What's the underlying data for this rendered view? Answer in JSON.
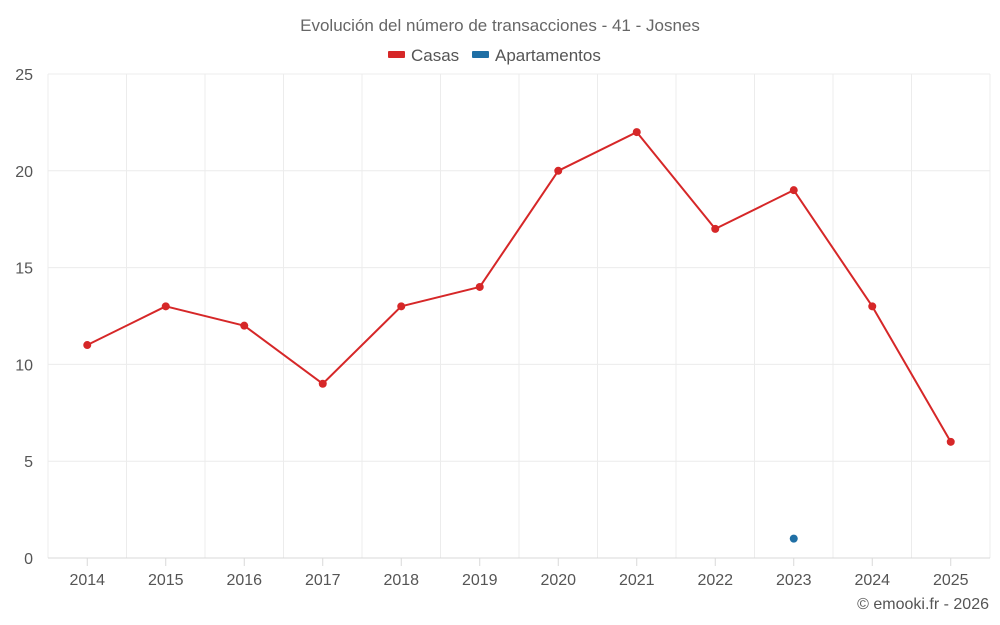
{
  "chart_data": {
    "type": "line",
    "title": "Evolución del número de transacciones - 41 - Josnes",
    "x": [
      "2014",
      "2015",
      "2016",
      "2017",
      "2018",
      "2019",
      "2020",
      "2021",
      "2022",
      "2023",
      "2024",
      "2025"
    ],
    "series": [
      {
        "name": "Casas",
        "color": "#d62728",
        "values": [
          11,
          13,
          12,
          9,
          13,
          14,
          20,
          22,
          17,
          19,
          13,
          6
        ]
      },
      {
        "name": "Apartamentos",
        "color": "#1f6fa5",
        "values": [
          null,
          null,
          null,
          null,
          null,
          null,
          null,
          null,
          null,
          1,
          null,
          null
        ]
      }
    ],
    "ylim": [
      0,
      25
    ],
    "yticks": [
      0,
      5,
      10,
      15,
      20,
      25
    ],
    "grid": true,
    "legend_position": "top-center"
  },
  "credit": "© emooki.fr - 2026"
}
